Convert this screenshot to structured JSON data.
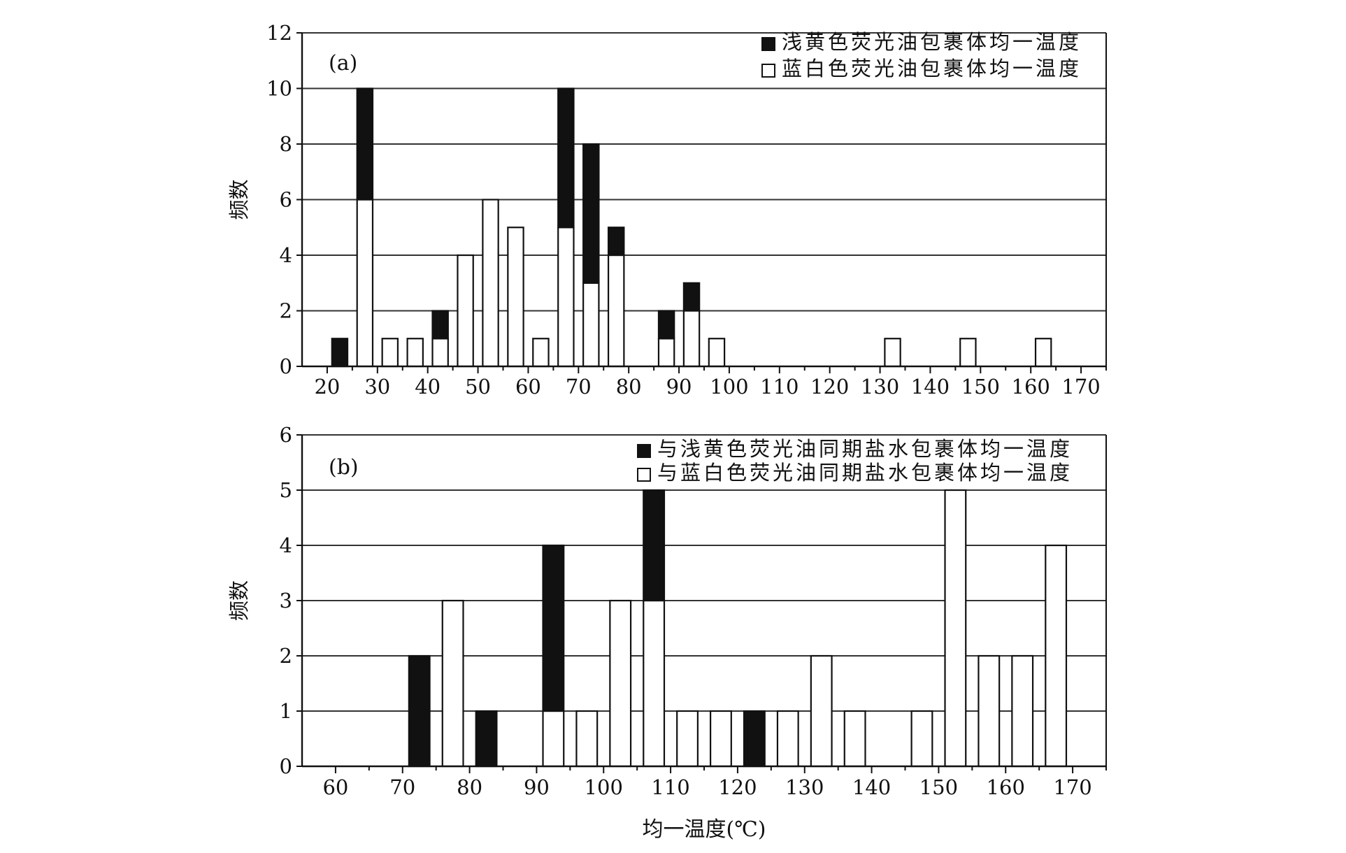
{
  "chart_data": [
    {
      "type": "bar",
      "stacked": true,
      "panel_label": "(a)",
      "ylabel": "频数",
      "xlabel": "",
      "ylim": [
        0,
        12
      ],
      "yticks": [
        0,
        2,
        4,
        6,
        8,
        10,
        12
      ],
      "xlim": [
        15,
        175
      ],
      "xticks": [
        20,
        30,
        40,
        50,
        60,
        70,
        80,
        90,
        100,
        110,
        120,
        130,
        140,
        150,
        160,
        170
      ],
      "bin_width": 5,
      "grid": true,
      "legend_position": "top-right",
      "x": [
        20,
        25,
        30,
        35,
        40,
        45,
        50,
        55,
        60,
        65,
        70,
        75,
        85,
        90,
        95,
        130,
        145,
        160
      ],
      "series": [
        {
          "name": "蓝白色荧光油包裹体均一温度",
          "color": "#ffffff",
          "values": [
            0,
            6,
            1,
            1,
            1,
            4,
            6,
            5,
            1,
            5,
            3,
            4,
            1,
            2,
            1,
            1,
            1,
            1
          ]
        },
        {
          "name": "浅黄色荧光油包裹体均一温度",
          "color": "#111111",
          "values": [
            1,
            4,
            0,
            0,
            1,
            0,
            0,
            0,
            0,
            5,
            5,
            1,
            1,
            1,
            0,
            0,
            0,
            0
          ]
        }
      ],
      "legend_order": [
        1,
        0
      ]
    },
    {
      "type": "bar",
      "stacked": true,
      "panel_label": "(b)",
      "ylabel": "频数",
      "xlabel": "均一温度(℃)",
      "ylim": [
        0,
        6
      ],
      "yticks": [
        0,
        1,
        2,
        3,
        4,
        5,
        6
      ],
      "xlim": [
        55,
        175
      ],
      "xticks": [
        60,
        70,
        80,
        90,
        100,
        110,
        120,
        130,
        140,
        150,
        160,
        170
      ],
      "bin_width": 5,
      "grid": true,
      "legend_position": "top-right",
      "x": [
        70,
        75,
        80,
        90,
        95,
        100,
        105,
        110,
        115,
        120,
        125,
        130,
        135,
        145,
        150,
        155,
        160,
        165
      ],
      "series": [
        {
          "name": "与蓝白色荧光油同期盐水包裹体均一温度",
          "color": "#ffffff",
          "values": [
            0,
            3,
            0,
            1,
            1,
            3,
            3,
            1,
            1,
            0,
            1,
            2,
            1,
            1,
            5,
            2,
            2,
            4
          ]
        },
        {
          "name": "与浅黄色荧光油同期盐水包裹体均一温度",
          "color": "#111111",
          "values": [
            2,
            0,
            1,
            3,
            0,
            0,
            2,
            0,
            0,
            1,
            0,
            0,
            0,
            0,
            0,
            0,
            0,
            0
          ]
        }
      ],
      "legend_order": [
        1,
        0
      ]
    }
  ]
}
